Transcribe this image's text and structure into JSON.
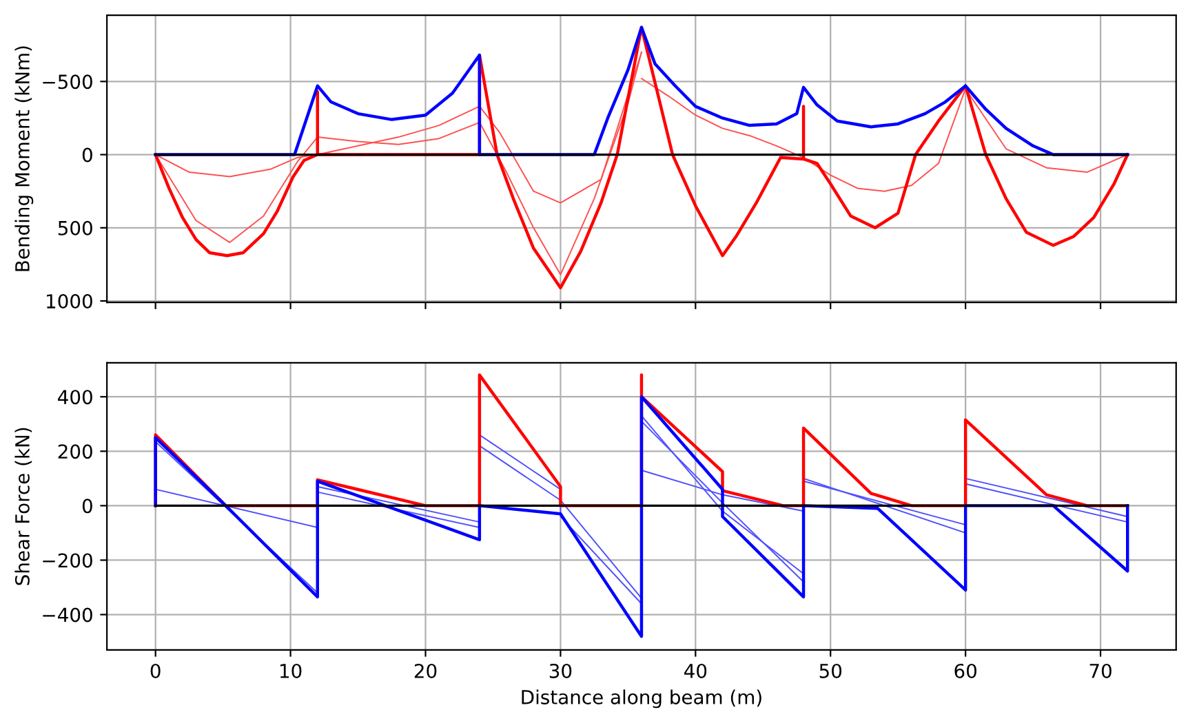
{
  "chart_data": [
    {
      "type": "line",
      "ylabel": "Bending Moment (kNm)",
      "xlim": [
        -3.6,
        75.6
      ],
      "xticks": [
        0,
        10,
        20,
        30,
        40,
        50,
        60,
        70
      ],
      "ylim": [
        1010,
        -953
      ],
      "yticks": [
        -500,
        0,
        500,
        1000
      ],
      "grid": true,
      "tick_labels": "y",
      "series": [
        {
          "color": "#000000",
          "x": [
            0,
            72
          ],
          "values": [
            0,
            0
          ]
        },
        {
          "color": "#ff5050",
          "x": [
            0,
            2.5,
            5.5,
            8.5,
            10.5,
            12,
            14,
            18,
            21,
            24,
            25.5,
            28,
            30,
            33,
            36
          ],
          "values": [
            0,
            120,
            150,
            100,
            20,
            0,
            -40,
            -120,
            -200,
            -330,
            -150,
            250,
            330,
            170,
            -700
          ]
        },
        {
          "color": "#ff5050",
          "x": [
            0,
            3,
            5.5,
            8,
            10.5,
            12,
            15,
            18,
            21,
            24,
            26,
            28,
            30,
            32.5,
            35,
            36
          ],
          "values": [
            0,
            450,
            600,
            420,
            50,
            -120,
            -90,
            -70,
            -110,
            -220,
            120,
            500,
            820,
            300,
            -350,
            -700
          ]
        },
        {
          "color": "#ff5050",
          "x": [
            36,
            38,
            40,
            42,
            44,
            46,
            48,
            50,
            52,
            54,
            56,
            58,
            60,
            63,
            66,
            69,
            72
          ],
          "values": [
            -520,
            -400,
            -270,
            -180,
            -130,
            -60,
            20,
            140,
            230,
            250,
            210,
            60,
            -450,
            -40,
            90,
            120,
            0
          ]
        },
        {
          "color": "#ff0000",
          "x": [
            0,
            1,
            2,
            3,
            4,
            5.3,
            6.5,
            8,
            9,
            10.2,
            11,
            12,
            12,
            12,
            24,
            24,
            25.3,
            26.5,
            28,
            30,
            31.5,
            33,
            34.2,
            36,
            38.3,
            40,
            42,
            43,
            44.5,
            46.3,
            48,
            48,
            48,
            49,
            50,
            51.5,
            53.3,
            55,
            56.3,
            58,
            60,
            61.5,
            63,
            64.5,
            66.5,
            68,
            69.5,
            71,
            72
          ],
          "values": [
            0,
            230,
            430,
            580,
            670,
            690,
            670,
            540,
            390,
            150,
            40,
            0,
            -430,
            0,
            0,
            -680,
            0,
            300,
            640,
            910,
            660,
            330,
            0,
            -870,
            0,
            350,
            690,
            560,
            330,
            20,
            30,
            -330,
            30,
            60,
            200,
            420,
            500,
            400,
            0,
            -230,
            -470,
            0,
            300,
            530,
            620,
            560,
            430,
            200,
            0
          ]
        },
        {
          "color": "#0000ff",
          "x": [
            0,
            10.3,
            12,
            13,
            15,
            17.5,
            20,
            22,
            24,
            24,
            25.3,
            32.5,
            33.5,
            35,
            36,
            37,
            38.5,
            40,
            42,
            44,
            46,
            47.5,
            48,
            49,
            50.5,
            53,
            55,
            57,
            58.5,
            60,
            61.5,
            63,
            65,
            66.5,
            72
          ],
          "values": [
            0,
            0,
            -470,
            -360,
            -280,
            -240,
            -270,
            -420,
            -680,
            0,
            0,
            0,
            -250,
            -580,
            -870,
            -620,
            -470,
            -330,
            -250,
            -200,
            -210,
            -280,
            -460,
            -340,
            -230,
            -190,
            -210,
            -280,
            -360,
            -470,
            -310,
            -180,
            -60,
            0,
            0
          ]
        }
      ]
    },
    {
      "type": "line",
      "xlabel": "Distance along beam (m)",
      "ylabel": "Shear Force (kN)",
      "xlim": [
        -3.6,
        75.6
      ],
      "xticks": [
        0,
        10,
        20,
        30,
        40,
        50,
        60,
        70
      ],
      "ylim": [
        -530,
        525
      ],
      "yticks": [
        -400,
        -200,
        0,
        200,
        400
      ],
      "grid": true,
      "series": [
        {
          "color": "#000000",
          "x": [
            0,
            72
          ],
          "values": [
            0,
            0
          ]
        },
        {
          "color": "#5050ff",
          "x": [
            0,
            0,
            12,
            12,
            24,
            24,
            30,
            30,
            36,
            36,
            42,
            48,
            48,
            60,
            60,
            72,
            72
          ],
          "values": [
            0,
            60,
            -80,
            70,
            -60,
            260,
            60,
            -40,
            -360,
            130,
            40,
            -20,
            90,
            -70,
            100,
            -40,
            0
          ]
        },
        {
          "color": "#5050ff",
          "x": [
            0,
            0,
            12,
            12,
            24,
            24,
            30,
            36,
            36,
            42,
            48,
            48,
            60,
            60,
            72
          ],
          "values": [
            0,
            235,
            -320,
            50,
            -80,
            220,
            20,
            -340,
            330,
            -20,
            -250,
            100,
            -100,
            80,
            -60
          ]
        },
        {
          "color": "#5050ff",
          "x": [
            36,
            42,
            48
          ],
          "values": [
            310,
            10,
            -280
          ]
        },
        {
          "color": "#ff0000",
          "x": [
            0,
            0,
            5.2,
            12,
            12,
            20,
            24,
            24,
            30,
            30,
            36,
            36,
            36,
            42,
            42,
            46.5,
            48,
            48,
            53,
            56,
            60,
            60,
            66,
            69,
            72
          ],
          "values": [
            0,
            260,
            0,
            0,
            95,
            0,
            0,
            480,
            70,
            0,
            0,
            480,
            400,
            125,
            55,
            0,
            0,
            285,
            45,
            0,
            0,
            315,
            40,
            0,
            0
          ]
        },
        {
          "color": "#0000ff",
          "x": [
            0,
            0,
            5.2,
            12,
            12,
            24,
            24,
            30,
            36,
            36,
            42,
            42,
            48,
            48,
            53.5,
            60,
            60,
            66.5,
            72,
            72
          ],
          "values": [
            0,
            250,
            0,
            -335,
            90,
            -125,
            0,
            -30,
            -480,
            400,
            60,
            -40,
            -335,
            0,
            -10,
            -310,
            0,
            0,
            -240,
            0
          ]
        }
      ]
    }
  ]
}
